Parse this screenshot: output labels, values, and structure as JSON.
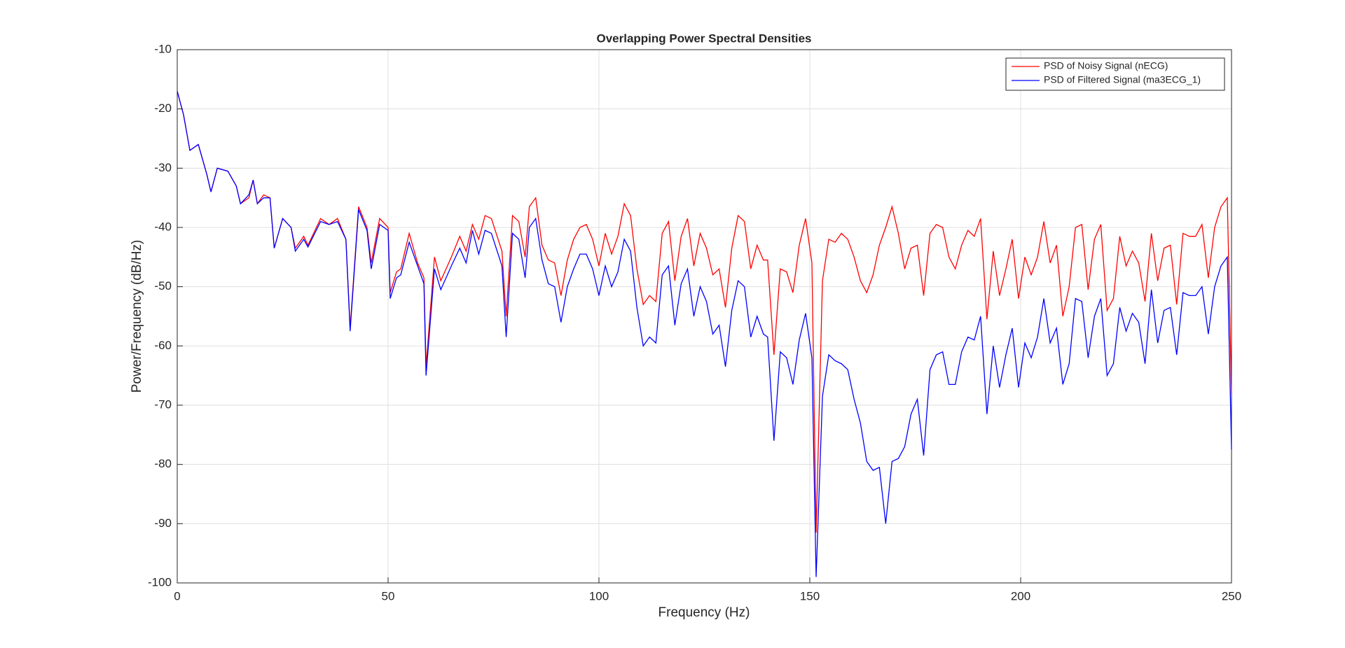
{
  "chart_data": {
    "type": "line",
    "title": "Overlapping Power Spectral Densities",
    "xlabel": "Frequency (Hz)",
    "ylabel": "Power/Frequency (dB/Hz)",
    "xlim": [
      0,
      250
    ],
    "ylim": [
      -100,
      -10
    ],
    "xticks": [
      0,
      50,
      100,
      150,
      200,
      250
    ],
    "yticks": [
      -100,
      -90,
      -80,
      -70,
      -60,
      -50,
      -40,
      -30,
      -20,
      -10
    ],
    "grid": true,
    "legend": "upper right",
    "x": [
      0,
      1.5,
      3,
      5,
      7,
      8,
      9.5,
      12,
      14,
      15,
      17,
      18,
      19,
      20.5,
      22,
      23,
      25,
      27,
      28,
      30,
      31,
      34,
      36,
      38,
      40,
      41,
      43,
      45,
      46,
      48,
      50,
      50.5,
      52,
      53,
      55,
      57,
      58.5,
      59,
      61,
      62.5,
      65,
      67,
      68.5,
      70,
      71.5,
      73,
      74.5,
      77,
      78,
      79.5,
      81,
      82.5,
      83.5,
      85,
      86.5,
      88,
      89.5,
      91,
      92.5,
      94,
      95.5,
      97,
      98.5,
      100,
      101.5,
      103,
      104.5,
      106,
      107.5,
      109,
      110.5,
      112,
      113.5,
      115,
      116.5,
      118,
      119.5,
      121,
      122.5,
      124,
      125.5,
      127,
      128.5,
      130,
      131.5,
      133,
      134.5,
      136,
      137.5,
      139,
      140,
      141.5,
      143,
      144.5,
      146,
      147.5,
      149,
      150.5,
      151.5,
      153,
      154.5,
      156,
      157.5,
      159,
      160.5,
      162,
      163.5,
      165,
      166.5,
      168,
      169.5,
      171,
      172.5,
      174,
      175.5,
      177,
      178.5,
      180,
      181.5,
      183,
      184.5,
      186,
      187.5,
      189,
      190.5,
      192,
      193.5,
      195,
      196.5,
      198,
      199.5,
      201,
      202.5,
      204,
      205.5,
      207,
      208.5,
      210,
      211.5,
      213,
      214.5,
      216,
      217.5,
      219,
      220.5,
      222,
      223.5,
      225,
      226.5,
      228,
      229.5,
      231,
      232.5,
      234,
      235.5,
      237,
      238.5,
      240,
      241.5,
      243,
      244.5,
      246,
      247.5,
      249,
      250
    ],
    "series": [
      {
        "name": "PSD of Noisy Signal (nECG)",
        "color": "#ff0000",
        "values": [
          -17,
          -21,
          -27,
          -26,
          -31,
          -34,
          -30,
          -30.5,
          -33,
          -36,
          -35,
          -32,
          -36,
          -34.5,
          -35,
          -43.5,
          -38.5,
          -40,
          -43.5,
          -41.5,
          -43,
          -38.5,
          -39.5,
          -38.5,
          -42,
          -57,
          -36.5,
          -40,
          -46,
          -38.5,
          -40,
          -51,
          -47.5,
          -47,
          -41,
          -46,
          -48.5,
          -63.5,
          -45,
          -49,
          -45,
          -41.5,
          -44,
          -39.5,
          -42,
          -38,
          -38.5,
          -44,
          -55,
          -38,
          -39,
          -45,
          -36.5,
          -35,
          -43,
          -45.5,
          -46,
          -51.5,
          -45.5,
          -42,
          -40,
          -39.5,
          -42,
          -46.5,
          -41,
          -44.5,
          -41.5,
          -36,
          -38,
          -47,
          -53,
          -51.5,
          -52.5,
          -41,
          -39,
          -49,
          -41.5,
          -38.5,
          -46.5,
          -41,
          -43.5,
          -48,
          -47,
          -53.5,
          -43.5,
          -38,
          -39,
          -47,
          -43,
          -45.5,
          -45.5,
          -61.5,
          -47,
          -47.5,
          -51,
          -43,
          -38.5,
          -46,
          -91.5,
          -49,
          -42,
          -42.5,
          -41,
          -42,
          -45,
          -49,
          -51,
          -48,
          -43,
          -40,
          -36.5,
          -41,
          -47,
          -43.5,
          -43,
          -51.5,
          -41,
          -39.5,
          -40,
          -45,
          -47,
          -43,
          -40.5,
          -41.5,
          -38.5,
          -55.5,
          -44,
          -51.5,
          -47,
          -42,
          -52,
          -45,
          -48,
          -45,
          -39,
          -46,
          -43,
          -55,
          -50,
          -40,
          -39.5,
          -50.5,
          -42,
          -39.5,
          -54,
          -52,
          -41.5,
          -46.5,
          -44,
          -46,
          -52.5,
          -41,
          -49,
          -43.5,
          -43,
          -53,
          -41,
          -41.5,
          -41.5,
          -39.5,
          -48.5,
          -40,
          -36.5,
          -35,
          -68
        ]
      },
      {
        "name": "PSD of Filtered Signal (ma3ECG_1)",
        "color": "#0000ff",
        "values": [
          -17,
          -21,
          -27,
          -26,
          -31,
          -34,
          -30,
          -30.5,
          -33,
          -36,
          -34.5,
          -32,
          -36,
          -35,
          -35,
          -43.5,
          -38.5,
          -40,
          -44,
          -42,
          -43.3,
          -39,
          -39.5,
          -39,
          -42,
          -57.5,
          -37,
          -40.5,
          -47,
          -39.5,
          -40.5,
          -52,
          -48.5,
          -48,
          -42.5,
          -46.5,
          -49.5,
          -65,
          -47,
          -50.5,
          -46.5,
          -43.5,
          -46,
          -40.5,
          -44.5,
          -40.5,
          -41,
          -46.5,
          -58.5,
          -41,
          -42,
          -48.5,
          -40,
          -38.5,
          -45.5,
          -49.5,
          -50,
          -56,
          -50,
          -47,
          -44.5,
          -44.5,
          -47,
          -51.5,
          -46.5,
          -50,
          -47.5,
          -42,
          -44,
          -53.5,
          -60,
          -58.5,
          -59.5,
          -48,
          -46.5,
          -56.5,
          -49.5,
          -47,
          -55,
          -50,
          -52.5,
          -58,
          -56.5,
          -63.5,
          -54,
          -49,
          -50,
          -58.5,
          -55,
          -58,
          -58.5,
          -76,
          -61,
          -62,
          -66.5,
          -59,
          -54.5,
          -62,
          -99,
          -68.5,
          -61.5,
          -62.5,
          -63,
          -64,
          -69,
          -73,
          -79.5,
          -81,
          -80.5,
          -90,
          -79.5,
          -79,
          -77,
          -71.5,
          -69,
          -78.5,
          -64,
          -61.5,
          -61,
          -66.5,
          -66.5,
          -61,
          -58.5,
          -59,
          -55,
          -71.5,
          -60,
          -67,
          -61.5,
          -57,
          -67,
          -59.5,
          -62,
          -58.5,
          -52,
          -59.5,
          -57,
          -66.5,
          -63,
          -52,
          -52.5,
          -62,
          -55,
          -52,
          -65,
          -63,
          -53.5,
          -57.5,
          -54.5,
          -56,
          -63,
          -50.5,
          -59.5,
          -54,
          -53.5,
          -61.5,
          -51,
          -51.5,
          -51.5,
          -50,
          -58,
          -50,
          -46.5,
          -45,
          -77.5
        ]
      }
    ]
  }
}
